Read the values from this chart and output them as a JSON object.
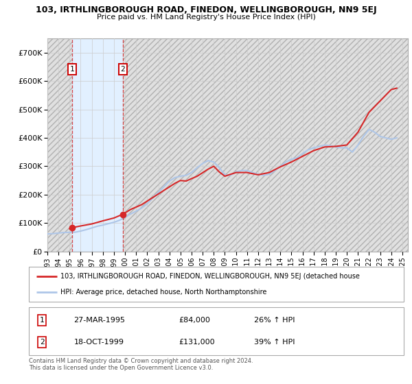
{
  "title_line1": "103, IRTHLINGBOROUGH ROAD, FINEDON, WELLINGBOROUGH, NN9 5EJ",
  "title_line2": "Price paid vs. HM Land Registry's House Price Index (HPI)",
  "xlim_start": 1993.0,
  "xlim_end": 2025.5,
  "ylim_min": 0,
  "ylim_max": 750000,
  "yticks": [
    0,
    100000,
    200000,
    300000,
    400000,
    500000,
    600000,
    700000
  ],
  "ytick_labels": [
    "£0",
    "£100K",
    "£200K",
    "£300K",
    "£400K",
    "£500K",
    "£600K",
    "£700K"
  ],
  "xtick_years": [
    "1993",
    "1994",
    "1995",
    "1996",
    "1997",
    "1998",
    "1999",
    "2000",
    "2001",
    "2002",
    "2003",
    "2004",
    "2005",
    "2006",
    "2007",
    "2008",
    "2009",
    "2010",
    "2011",
    "2012",
    "2013",
    "2014",
    "2015",
    "2016",
    "2017",
    "2018",
    "2019",
    "2020",
    "2021",
    "2022",
    "2023",
    "2024",
    "2025"
  ],
  "sale1_x": 1995.23,
  "sale1_y": 84000,
  "sale1_label": "1",
  "sale1_date": "27-MAR-1995",
  "sale1_price": "£84,000",
  "sale1_hpi": "26% ↑ HPI",
  "sale2_x": 1999.79,
  "sale2_y": 131000,
  "sale2_label": "2",
  "sale2_date": "18-OCT-1999",
  "sale2_price": "£131,000",
  "sale2_hpi": "39% ↑ HPI",
  "hpi_color": "#aec6e8",
  "price_color": "#d62728",
  "legend_label_price": "103, IRTHLINGBOROUGH ROAD, FINEDON, WELLINGBOROUGH, NN9 5EJ (detached house",
  "legend_label_hpi": "HPI: Average price, detached house, North Northamptonshire",
  "footer": "Contains HM Land Registry data © Crown copyright and database right 2024.\nThis data is licensed under the Open Government Licence v3.0.",
  "hpi_data_x": [
    1993.0,
    1993.5,
    1994.0,
    1994.5,
    1995.0,
    1995.5,
    1996.0,
    1996.5,
    1997.0,
    1997.5,
    1998.0,
    1998.5,
    1999.0,
    1999.5,
    2000.0,
    2000.5,
    2001.0,
    2001.5,
    2002.0,
    2002.5,
    2003.0,
    2003.5,
    2004.0,
    2004.5,
    2005.0,
    2005.5,
    2006.0,
    2006.5,
    2007.0,
    2007.5,
    2008.0,
    2008.5,
    2009.0,
    2009.5,
    2010.0,
    2010.5,
    2011.0,
    2011.5,
    2012.0,
    2012.5,
    2013.0,
    2013.5,
    2014.0,
    2014.5,
    2015.0,
    2015.5,
    2016.0,
    2016.5,
    2017.0,
    2017.5,
    2018.0,
    2018.5,
    2019.0,
    2019.5,
    2020.0,
    2020.5,
    2021.0,
    2021.5,
    2022.0,
    2022.5,
    2023.0,
    2023.5,
    2024.0,
    2024.5
  ],
  "hpi_data_y": [
    62000,
    63000,
    65000,
    67000,
    67500,
    68000,
    72000,
    77000,
    83000,
    89000,
    93000,
    98000,
    103000,
    110000,
    120000,
    132000,
    142000,
    153000,
    168000,
    188000,
    208000,
    228000,
    248000,
    260000,
    265000,
    268000,
    278000,
    295000,
    310000,
    320000,
    315000,
    295000,
    270000,
    268000,
    280000,
    285000,
    285000,
    278000,
    272000,
    268000,
    272000,
    285000,
    300000,
    315000,
    325000,
    330000,
    345000,
    358000,
    365000,
    370000,
    375000,
    372000,
    368000,
    365000,
    365000,
    350000,
    375000,
    405000,
    430000,
    420000,
    405000,
    400000,
    395000,
    400000
  ],
  "price_data_x": [
    1995.0,
    1995.23,
    1996.0,
    1997.0,
    1998.0,
    1999.0,
    1999.79,
    2000.5,
    2001.5,
    2002.5,
    2003.5,
    2004.5,
    2005.0,
    2005.5,
    2006.5,
    2007.5,
    2008.0,
    2008.5,
    2009.0,
    2010.0,
    2011.0,
    2012.0,
    2013.0,
    2014.0,
    2015.0,
    2016.0,
    2017.0,
    2018.0,
    2019.0,
    2020.0,
    2021.0,
    2022.0,
    2023.0,
    2024.0,
    2024.5
  ],
  "price_data_y": [
    80000,
    84000,
    90000,
    97000,
    108000,
    118000,
    131000,
    148000,
    165000,
    190000,
    215000,
    240000,
    250000,
    248000,
    265000,
    290000,
    300000,
    280000,
    265000,
    278000,
    278000,
    270000,
    278000,
    298000,
    315000,
    335000,
    355000,
    368000,
    370000,
    375000,
    420000,
    490000,
    530000,
    570000,
    575000
  ]
}
